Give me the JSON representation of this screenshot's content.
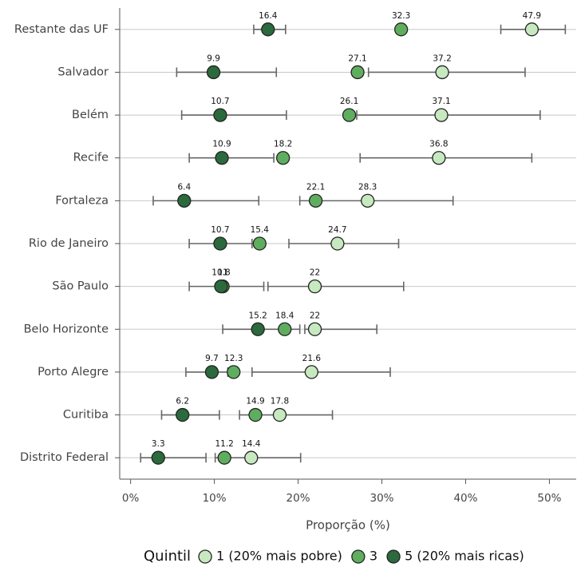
{
  "chart_data": {
    "type": "dot",
    "x_label": "Proporção (%)",
    "legend_title": "Quintil",
    "categories": [
      "Restante das UF",
      "Salvador",
      "Belém",
      "Recife",
      "Fortaleza",
      "Rio de Janeiro",
      "São Paulo",
      "Belo Horizonte",
      "Porto Alegre",
      "Curitiba",
      "Distrito Federal"
    ],
    "series": [
      {
        "name": "1 (20% mais pobre)",
        "color": "#c7e9c0",
        "values": [
          47.9,
          37.2,
          37.1,
          36.8,
          28.3,
          24.7,
          22,
          22,
          21.6,
          17.8,
          14.4
        ],
        "ci_low": [
          44.2,
          28.4,
          27.0,
          27.4,
          20.2,
          18.9,
          16.4,
          20.8,
          14.5,
          13.0,
          10.1
        ],
        "ci_high": [
          51.9,
          47.1,
          48.9,
          47.9,
          38.5,
          32.0,
          32.6,
          29.4,
          31.0,
          24.1,
          20.3
        ]
      },
      {
        "name": "3",
        "color": "#5fae5f",
        "values": [
          32.3,
          27.1,
          26.1,
          18.2,
          22.1,
          15.4,
          11,
          18.4,
          12.3,
          14.9,
          11.2
        ]
      },
      {
        "name": "5 (20% mais ricas)",
        "color": "#2b6a3c",
        "values": [
          16.4,
          9.9,
          10.7,
          10.9,
          6.4,
          10.7,
          10.8,
          15.2,
          9.7,
          6.2,
          3.3
        ],
        "ci_low": [
          14.7,
          5.5,
          6.1,
          7.0,
          2.7,
          7.0,
          7.0,
          11.0,
          6.6,
          3.7,
          1.2
        ],
        "ci_high": [
          18.5,
          17.4,
          18.6,
          17.1,
          15.3,
          14.5,
          15.9,
          20.2,
          11.6,
          10.6,
          9.0
        ]
      }
    ],
    "xlim": [
      -1.3,
      53.2
    ],
    "xticks": [
      {
        "value": 0,
        "label": "0%"
      },
      {
        "value": 10,
        "label": "10%"
      },
      {
        "value": 20,
        "label": "20%"
      },
      {
        "value": 30,
        "label": "30%"
      },
      {
        "value": 40,
        "label": "40%"
      },
      {
        "value": 50,
        "label": "50%"
      }
    ],
    "grid": true
  }
}
